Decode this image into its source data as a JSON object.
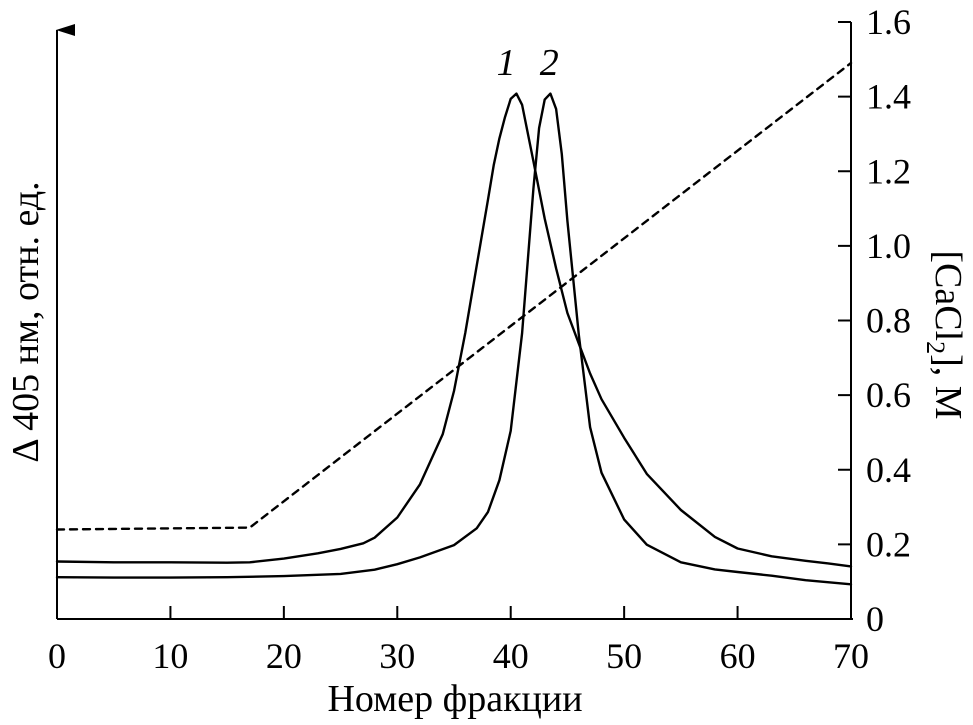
{
  "chart_data": {
    "type": "line",
    "title": "",
    "xlabel": "Номер фракции",
    "ylabel_left": "Δ 405 нм, отн. ед.",
    "ylabel_right_parts": {
      "pre": "[CaCl",
      "sub": "2",
      "post": "], М"
    },
    "xlim": [
      0,
      70
    ],
    "x_ticks": [
      "0",
      "10",
      "20",
      "30",
      "40",
      "50",
      "60",
      "70"
    ],
    "ylim_right": [
      0,
      1.6
    ],
    "right_ticks": [
      "0",
      "0.2",
      "0.4",
      "0.6",
      "0.8",
      "1.0",
      "1.2",
      "1.4",
      "1.6"
    ],
    "left_axis_units": "relative (no tick labels)",
    "grid": false,
    "series": [
      {
        "name": "1",
        "axis": "left",
        "style": "solid",
        "x": [
          0,
          5,
          10,
          15,
          17,
          20,
          23,
          25,
          27,
          28,
          30,
          32,
          34,
          35,
          36,
          37,
          38,
          38.5,
          39,
          39.5,
          40,
          40.5,
          41,
          42,
          43,
          44,
          45,
          46,
          47,
          48,
          50,
          52,
          55,
          58,
          60,
          63,
          66,
          68,
          70
        ],
        "y": [
          0.154,
          0.152,
          0.152,
          0.151,
          0.152,
          0.162,
          0.176,
          0.188,
          0.203,
          0.218,
          0.272,
          0.361,
          0.495,
          0.611,
          0.767,
          0.947,
          1.124,
          1.216,
          1.288,
          1.345,
          1.394,
          1.408,
          1.378,
          1.227,
          1.073,
          0.94,
          0.82,
          0.738,
          0.658,
          0.589,
          0.486,
          0.389,
          0.292,
          0.22,
          0.189,
          0.168,
          0.156,
          0.149,
          0.141
        ]
      },
      {
        "name": "2",
        "axis": "left",
        "style": "solid",
        "x": [
          0,
          5,
          10,
          15,
          20,
          25,
          28,
          30,
          32,
          35,
          37,
          38,
          39,
          40,
          41,
          42,
          42.5,
          43,
          43.5,
          44,
          44.5,
          45,
          46,
          47,
          48,
          50,
          52,
          55,
          58,
          60,
          63,
          66,
          70
        ],
        "y": [
          0.112,
          0.111,
          0.111,
          0.112,
          0.115,
          0.121,
          0.132,
          0.147,
          0.165,
          0.198,
          0.243,
          0.287,
          0.372,
          0.504,
          0.766,
          1.153,
          1.316,
          1.392,
          1.408,
          1.367,
          1.246,
          1.067,
          0.762,
          0.514,
          0.392,
          0.267,
          0.199,
          0.152,
          0.133,
          0.126,
          0.116,
          0.104,
          0.093
        ]
      },
      {
        "name": "",
        "axis": "right",
        "style": "dashed",
        "x": [
          0,
          17,
          70
        ],
        "y": [
          0.24,
          0.245,
          1.49
        ]
      }
    ],
    "annotations": [
      {
        "text": "1",
        "x": 39.6,
        "y": 1.49
      },
      {
        "text": "2",
        "x": 43.4,
        "y": 1.49
      }
    ]
  }
}
